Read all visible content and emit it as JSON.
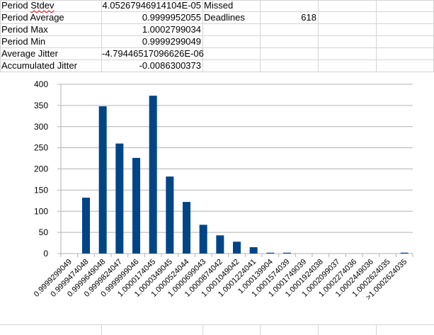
{
  "sheet": {
    "rows": [
      {
        "label": "Period Stdev",
        "label_flagged": "Stdev",
        "label_prefix": "Period ",
        "value": "4.05267946914104E-05",
        "extra": "Missed",
        "extra_value": ""
      },
      {
        "label": "Period Average",
        "value": "0.9999952055",
        "extra": "Deadlines",
        "extra_value": "618"
      },
      {
        "label": "Period Max",
        "value": "1.0002799034",
        "extra": "",
        "extra_value": ""
      },
      {
        "label": "Period Min",
        "value": "0.9999299049",
        "extra": "",
        "extra_value": ""
      },
      {
        "label": "Average Jitter",
        "value": "-4.79446517096626E-06",
        "extra": "",
        "extra_value": ""
      },
      {
        "label": "Accumulated Jitter",
        "value": "-0.0086300373",
        "extra": "",
        "extra_value": ""
      }
    ]
  },
  "chart_data": {
    "type": "bar",
    "title": "",
    "xlabel": "",
    "ylabel": "",
    "ylim": [
      0,
      400
    ],
    "yticks": [
      0,
      50,
      100,
      150,
      200,
      250,
      300,
      350,
      400
    ],
    "grid": true,
    "legend": "none",
    "bar_color": "#004586",
    "categories": [
      "0.9999299049",
      "0.9999474048",
      "0.9999649048",
      "0.9999824047",
      "0.9999999046",
      "1.0000174045",
      "1.0000349045",
      "1.0000524044",
      "1.0000699043",
      "1.0000874042",
      "1.0001049042",
      "1.0001224041",
      "1.000139904",
      "1.0001574039",
      "1.0001749039",
      "1.0001924038",
      "1.0002099037",
      "1.0002274036",
      "1.0002449036",
      "1.0002624035",
      ">1.0002624035"
    ],
    "values": [
      0,
      132,
      348,
      260,
      226,
      373,
      182,
      122,
      68,
      43,
      28,
      15,
      2,
      2,
      0,
      0,
      0,
      0,
      0,
      0,
      2
    ]
  }
}
